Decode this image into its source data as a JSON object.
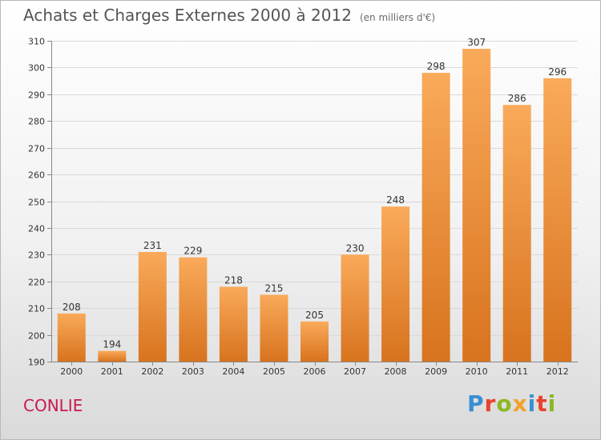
{
  "header": {
    "title": "Achats et Charges Externes 2000 à 2012",
    "subtitle": "(en milliers d'€)"
  },
  "footer": {
    "place": "CONLIE",
    "brand": "Proxiti",
    "brand_letter_colors": [
      "#3a8fd1",
      "#e8422f",
      "#8bb822",
      "#f1a22a",
      "#3a8fd1",
      "#e8422f",
      "#8bb822"
    ]
  },
  "colors": {
    "bar_top": "#f9aa5a",
    "bar_bottom": "#d8731e",
    "grid": "#d9d9d9",
    "axis": "#888888",
    "label": "#333333"
  },
  "chart_data": {
    "type": "bar",
    "title": "Achats et Charges Externes 2000 à 2012",
    "subtitle": "(en milliers d'€)",
    "categories": [
      "2000",
      "2001",
      "2002",
      "2003",
      "2004",
      "2005",
      "2006",
      "2007",
      "2008",
      "2009",
      "2010",
      "2011",
      "2012"
    ],
    "values": [
      208,
      194,
      231,
      229,
      218,
      215,
      205,
      230,
      248,
      298,
      307,
      286,
      296
    ],
    "ylim": [
      190,
      310
    ],
    "yticks": [
      190,
      200,
      210,
      220,
      230,
      240,
      250,
      260,
      270,
      280,
      290,
      300,
      310
    ],
    "grid": true,
    "legend": false,
    "data_labels": true
  }
}
